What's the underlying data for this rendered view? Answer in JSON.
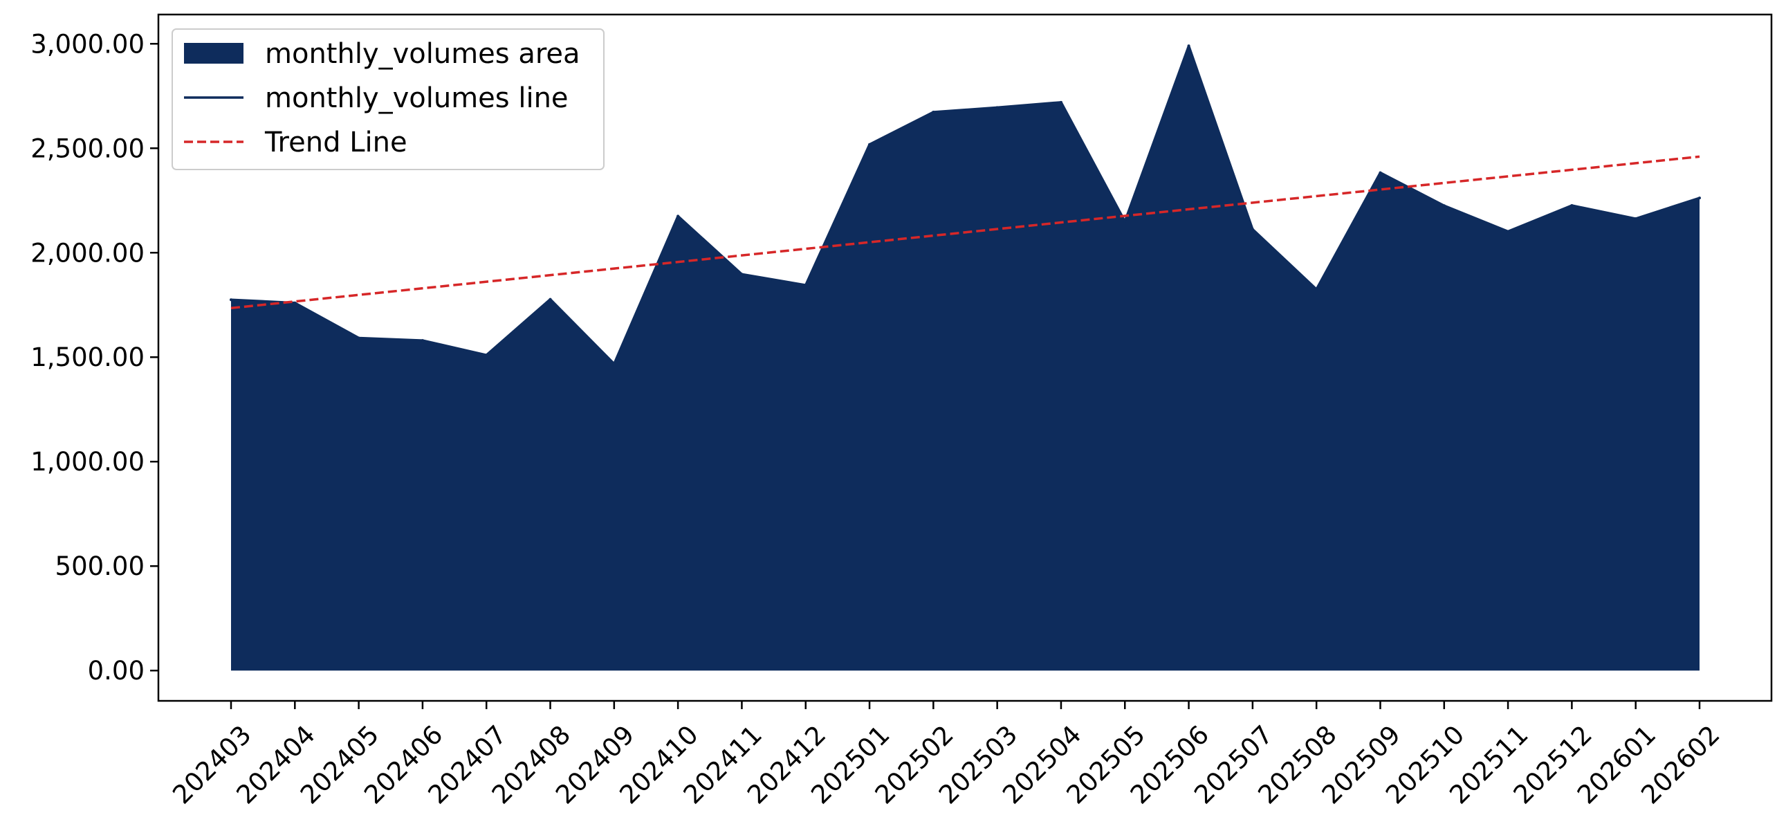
{
  "chart_data": {
    "type": "area",
    "title": "",
    "xlabel": "",
    "ylabel": "",
    "categories": [
      "202403",
      "202404",
      "202405",
      "202406",
      "202407",
      "202408",
      "202409",
      "202410",
      "202411",
      "202412",
      "202501",
      "202502",
      "202503",
      "202504",
      "202505",
      "202506",
      "202507",
      "202508",
      "202509",
      "202510",
      "202511",
      "202512",
      "202601",
      "202602"
    ],
    "series": [
      {
        "name": "monthly_volumes area",
        "kind": "area",
        "color": "#0e2c5c",
        "values": [
          1775,
          1760,
          1592,
          1580,
          1510,
          1777,
          1468,
          2175,
          1897,
          1845,
          2518,
          2673,
          2695,
          2720,
          2150,
          2990,
          2112,
          1825,
          2383,
          2225,
          2102,
          2226,
          2163,
          2262
        ]
      },
      {
        "name": "monthly_volumes line",
        "kind": "line",
        "color": "#0e2c5c",
        "values": [
          1775,
          1760,
          1592,
          1580,
          1510,
          1777,
          1468,
          2175,
          1897,
          1845,
          2518,
          2673,
          2695,
          2720,
          2150,
          2990,
          2112,
          1825,
          2383,
          2225,
          2102,
          2226,
          2163,
          2262
        ]
      },
      {
        "name": "Trend Line",
        "kind": "dashed-line",
        "color": "#d62728",
        "start": 1735,
        "end": 2460
      }
    ],
    "ylim": [
      -145,
      3140
    ],
    "yticks": [
      0,
      500,
      1000,
      1500,
      2000,
      2500,
      3000
    ],
    "ytick_labels": [
      "0.00",
      "500.00",
      "1,000.00",
      "1,500.00",
      "2,000.00",
      "2,500.00",
      "3,000.00"
    ],
    "grid": false,
    "legend": {
      "position": "top-left",
      "entries": [
        {
          "label": "monthly_volumes area",
          "kind": "area",
          "color": "#0e2c5c"
        },
        {
          "label": "monthly_volumes line",
          "kind": "line",
          "color": "#0e2c5c"
        },
        {
          "label": "Trend Line",
          "kind": "dashed-line",
          "color": "#d62728"
        }
      ]
    }
  }
}
